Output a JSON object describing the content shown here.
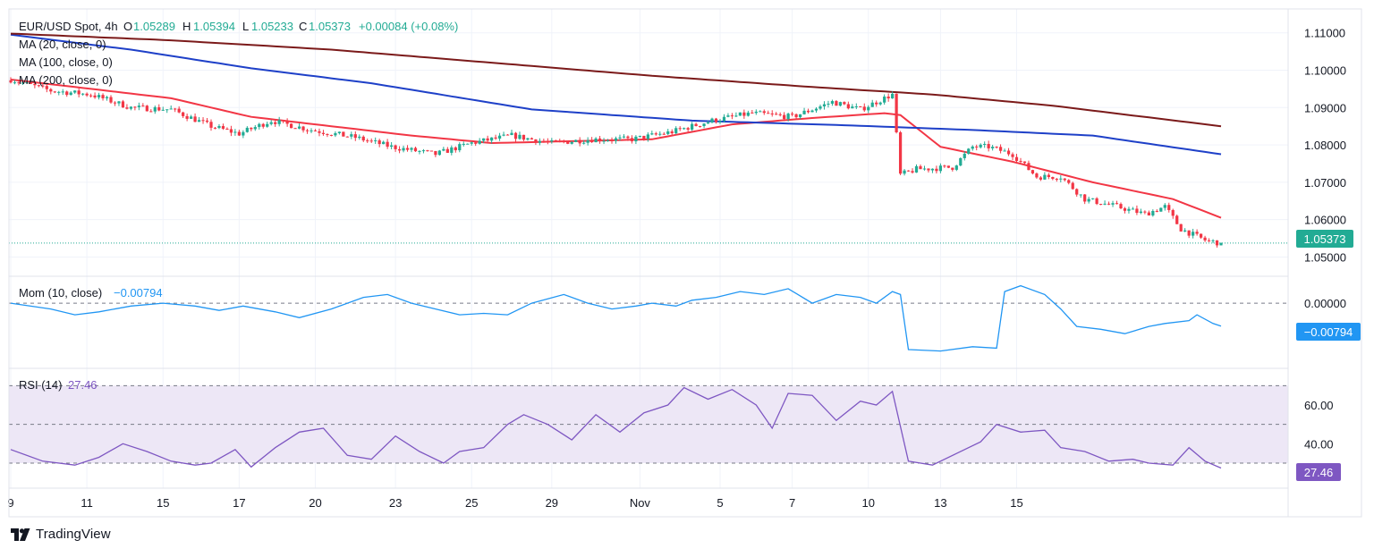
{
  "header": {
    "symbol": "EUR/USD Spot, 4h",
    "ohlc_open_label": "O",
    "ohlc_open": "1.05289",
    "ohlc_high_label": "H",
    "ohlc_high": "1.05394",
    "ohlc_low_label": "L",
    "ohlc_low": "1.05233",
    "ohlc_close_label": "C",
    "ohlc_close": "1.05373",
    "change": "+0.00084 (+0.08%)"
  },
  "indicators": {
    "ma20": "MA (20, close, 0)",
    "ma100": "MA (100, close, 0)",
    "ma200": "MA (200, close, 0)",
    "mom_label": "Mom (10, close)",
    "mom_value": "−0.00794",
    "mom_badge": "−0.00794",
    "rsi_label": "RSI (14)",
    "rsi_value": "27.46",
    "rsi_badge": "27.46",
    "price_badge": "1.05373"
  },
  "brand": {
    "name": "TradingView"
  },
  "colors": {
    "up": "#22ab94",
    "down": "#f23645",
    "ma20": "#f23645",
    "ma100": "#1e40c8",
    "ma200": "#7b1a1a",
    "mom": "#2196f3",
    "rsi": "#7e57c2",
    "rsi_band": "#ede7f6",
    "grid": "#f0f3fa",
    "text": "#131722",
    "axis_text": "#131722"
  },
  "chart_data": [
    {
      "type": "candlestick",
      "title": "EUR/USD Spot, 4h",
      "x_tick_labels": [
        "9",
        "11",
        "15",
        "17",
        "20",
        "23",
        "25",
        "29",
        "Nov",
        "5",
        "7",
        "10",
        "13",
        "15"
      ],
      "y_tick_labels": [
        "1.11000",
        "1.10000",
        "1.09000",
        "1.08000",
        "1.07000",
        "1.06000",
        "1.05000"
      ],
      "ylim": [
        1.047,
        1.114
      ],
      "last_close": 1.05373,
      "close_path_anchors": [
        [
          0,
          1.0975
        ],
        [
          10,
          1.0945
        ],
        [
          20,
          1.0935
        ],
        [
          30,
          1.09
        ],
        [
          40,
          1.0895
        ],
        [
          50,
          1.085
        ],
        [
          57,
          1.083
        ],
        [
          65,
          1.0865
        ],
        [
          75,
          1.084
        ],
        [
          86,
          1.082
        ],
        [
          95,
          1.0795
        ],
        [
          106,
          1.0775
        ],
        [
          115,
          1.0805
        ],
        [
          125,
          1.0825
        ],
        [
          135,
          1.0805
        ],
        [
          145,
          1.0815
        ],
        [
          155,
          1.0815
        ],
        [
          165,
          1.0835
        ],
        [
          175,
          1.0865
        ],
        [
          185,
          1.0885
        ],
        [
          195,
          1.0875
        ],
        [
          205,
          1.0915
        ],
        [
          212,
          1.0895
        ],
        [
          220,
          1.0935
        ],
        [
          222,
          1.072
        ],
        [
          226,
          1.0735
        ],
        [
          235,
          1.074
        ],
        [
          240,
          1.0795
        ],
        [
          244,
          1.0795
        ],
        [
          250,
          1.0775
        ],
        [
          256,
          1.0715
        ],
        [
          262,
          1.0715
        ],
        [
          268,
          1.0655
        ],
        [
          276,
          1.0635
        ],
        [
          283,
          1.0615
        ],
        [
          288,
          1.0635
        ],
        [
          292,
          1.0575
        ],
        [
          298,
          1.0545
        ],
        [
          302,
          1.0537
        ]
      ],
      "series": [
        {
          "name": "MA (20, close, 0)",
          "values": [
            [
              0,
              1.0975
            ],
            [
              40,
              1.0925
            ],
            [
              60,
              1.0875
            ],
            [
              100,
              1.0825
            ],
            [
              120,
              1.0805
            ],
            [
              140,
              1.081
            ],
            [
              160,
              1.0815
            ],
            [
              180,
              1.0855
            ],
            [
              200,
              1.0872
            ],
            [
              218,
              1.0885
            ],
            [
              222,
              1.088
            ],
            [
              232,
              1.0795
            ],
            [
              250,
              1.0755
            ],
            [
              270,
              1.07
            ],
            [
              290,
              1.0655
            ],
            [
              302,
              1.0605
            ]
          ]
        },
        {
          "name": "MA (100, close, 0)",
          "values": [
            [
              0,
              1.1095
            ],
            [
              30,
              1.1055
            ],
            [
              60,
              1.1005
            ],
            [
              90,
              1.0965
            ],
            [
              130,
              1.0895
            ],
            [
              170,
              1.0865
            ],
            [
              210,
              1.0852
            ],
            [
              240,
              1.084
            ],
            [
              270,
              1.0825
            ],
            [
              302,
              1.0775
            ]
          ]
        },
        {
          "name": "MA (200, close, 0)",
          "values": [
            [
              0,
              1.1098
            ],
            [
              40,
              1.108
            ],
            [
              80,
              1.1055
            ],
            [
              120,
              1.102
            ],
            [
              160,
              1.0985
            ],
            [
              200,
              1.0955
            ],
            [
              230,
              1.0935
            ],
            [
              260,
              1.0905
            ],
            [
              302,
              1.085
            ]
          ]
        }
      ]
    },
    {
      "type": "line",
      "title": "Mom (10, close)",
      "y_tick_labels": [
        "0.00000"
      ],
      "ylim": [
        -0.02,
        0.0065
      ],
      "last_value": -0.00794,
      "series": [
        {
          "name": "Mom (10, close)",
          "values": [
            [
              0,
              0.0
            ],
            [
              10,
              -0.002
            ],
            [
              16,
              -0.004
            ],
            [
              22,
              -0.003
            ],
            [
              30,
              -0.001
            ],
            [
              38,
              0.0
            ],
            [
              46,
              -0.001
            ],
            [
              52,
              -0.0025
            ],
            [
              58,
              -0.001
            ],
            [
              66,
              -0.003
            ],
            [
              72,
              -0.005
            ],
            [
              80,
              -0.002
            ],
            [
              88,
              0.002
            ],
            [
              94,
              0.003
            ],
            [
              100,
              0.0
            ],
            [
              106,
              -0.002
            ],
            [
              112,
              -0.004
            ],
            [
              118,
              -0.0035
            ],
            [
              124,
              -0.004
            ],
            [
              130,
              0.0
            ],
            [
              138,
              0.003
            ],
            [
              144,
              0.0
            ],
            [
              150,
              -0.002
            ],
            [
              156,
              -0.001
            ],
            [
              160,
              0.0
            ],
            [
              166,
              -0.001
            ],
            [
              170,
              0.001
            ],
            [
              176,
              0.002
            ],
            [
              182,
              0.004
            ],
            [
              188,
              0.003
            ],
            [
              194,
              0.005
            ],
            [
              200,
              0.0
            ],
            [
              206,
              0.003
            ],
            [
              212,
              0.002
            ],
            [
              216,
              0.0
            ],
            [
              220,
              0.004
            ],
            [
              222,
              0.003
            ],
            [
              224,
              -0.016
            ],
            [
              232,
              -0.0165
            ],
            [
              240,
              -0.015
            ],
            [
              246,
              -0.0155
            ],
            [
              248,
              0.004
            ],
            [
              252,
              0.006
            ],
            [
              258,
              0.003
            ],
            [
              262,
              -0.002
            ],
            [
              266,
              -0.008
            ],
            [
              272,
              -0.009
            ],
            [
              278,
              -0.0105
            ],
            [
              284,
              -0.008
            ],
            [
              288,
              -0.007
            ],
            [
              294,
              -0.006
            ],
            [
              296,
              -0.004
            ],
            [
              300,
              -0.007
            ],
            [
              302,
              -0.0079
            ]
          ]
        }
      ]
    },
    {
      "type": "line",
      "title": "RSI (14)",
      "y_tick_labels": [
        "60.00",
        "40.00"
      ],
      "ylim": [
        18,
        78
      ],
      "bands": [
        30,
        50,
        70
      ],
      "last_value": 27.46,
      "series": [
        {
          "name": "RSI (14)",
          "values": [
            [
              0,
              37
            ],
            [
              8,
              31
            ],
            [
              16,
              29
            ],
            [
              22,
              33
            ],
            [
              28,
              40
            ],
            [
              34,
              36
            ],
            [
              40,
              31
            ],
            [
              46,
              29
            ],
            [
              50,
              30
            ],
            [
              56,
              37
            ],
            [
              60,
              28
            ],
            [
              66,
              38
            ],
            [
              72,
              46
            ],
            [
              78,
              48
            ],
            [
              84,
              34
            ],
            [
              90,
              32
            ],
            [
              96,
              44
            ],
            [
              102,
              36
            ],
            [
              108,
              30
            ],
            [
              112,
              36
            ],
            [
              118,
              38
            ],
            [
              124,
              50
            ],
            [
              128,
              55
            ],
            [
              134,
              50
            ],
            [
              140,
              42
            ],
            [
              146,
              55
            ],
            [
              152,
              46
            ],
            [
              158,
              56
            ],
            [
              164,
              60
            ],
            [
              168,
              69
            ],
            [
              174,
              63
            ],
            [
              180,
              68
            ],
            [
              186,
              60
            ],
            [
              190,
              48
            ],
            [
              194,
              66
            ],
            [
              200,
              65
            ],
            [
              206,
              52
            ],
            [
              212,
              62
            ],
            [
              216,
              60
            ],
            [
              220,
              67
            ],
            [
              224,
              31
            ],
            [
              230,
              29
            ],
            [
              236,
              35
            ],
            [
              242,
              41
            ],
            [
              246,
              50
            ],
            [
              252,
              46
            ],
            [
              258,
              47
            ],
            [
              262,
              38
            ],
            [
              268,
              36
            ],
            [
              274,
              31
            ],
            [
              280,
              32
            ],
            [
              284,
              30
            ],
            [
              290,
              29
            ],
            [
              294,
              38
            ],
            [
              298,
              31
            ],
            [
              302,
              27.46
            ]
          ]
        }
      ]
    }
  ]
}
